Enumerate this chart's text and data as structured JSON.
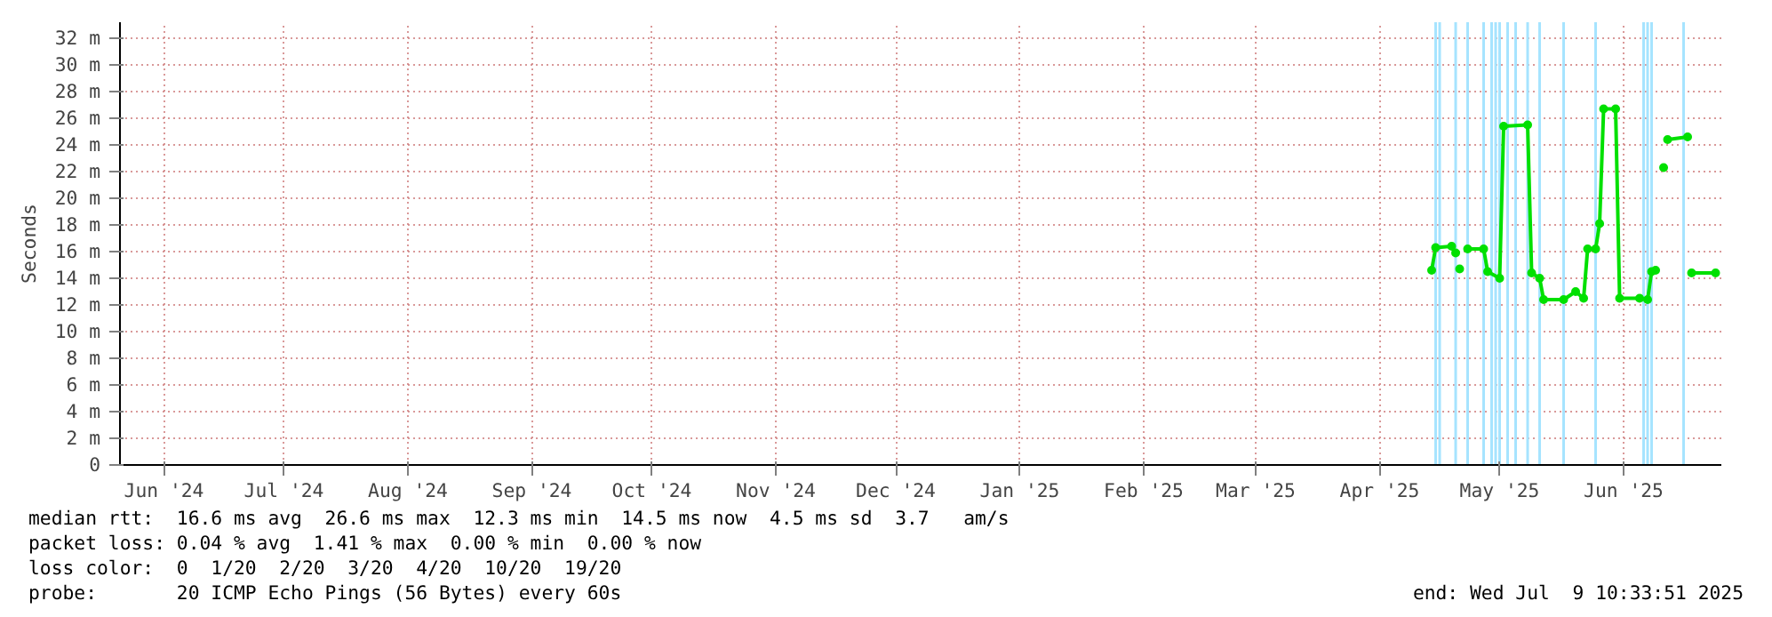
{
  "chart_data": {
    "type": "line",
    "ylabel": "Seconds",
    "x": [
      "2025-04-28",
      "2025-04-29",
      "2025-05-03",
      "2025-05-04",
      "2025-05-04T18:00",
      "2025-05-05",
      "2025-05-05T18:00",
      "2025-05-07",
      "2025-05-11",
      "2025-05-12",
      "2025-05-15",
      "2025-05-16",
      "2025-05-22",
      "2025-05-23",
      "2025-05-25",
      "2025-05-26",
      "2025-05-31",
      "2025-06-03",
      "2025-06-05",
      "2025-06-06",
      "2025-06-08",
      "2025-06-09",
      "2025-06-10",
      "2025-06-13",
      "2025-06-14",
      "2025-06-19",
      "2025-06-21",
      "2025-06-22",
      "2025-06-23",
      "2025-06-24",
      "2025-06-25",
      "2025-06-25T18:00",
      "2025-06-26",
      "2025-07-01",
      "2025-07-01T18:00",
      "2025-07-02",
      "2025-07-08"
    ],
    "series": [
      {
        "color": "#00e000",
        "values": [
          14.6,
          16.3,
          16.4,
          15.9,
          null,
          14.7,
          null,
          16.2,
          16.2,
          14.5,
          14.0,
          25.4,
          25.5,
          14.4,
          14.0,
          12.4,
          12.4,
          13.0,
          12.5,
          16.2,
          16.2,
          18.1,
          26.7,
          26.7,
          12.5,
          12.5,
          12.4,
          14.5,
          14.6,
          null,
          22.3,
          null,
          24.4,
          24.6,
          null,
          14.4,
          14.4
        ]
      }
    ],
    "xlim": [
      "2024-06-04",
      "2025-07-09T10:33"
    ],
    "xticks": [
      {
        "value": "2024-06-15",
        "label": "Jun '24"
      },
      {
        "value": "2024-07-15",
        "label": "Jul '24"
      },
      {
        "value": "2024-08-15",
        "label": "Aug '24"
      },
      {
        "value": "2024-09-15",
        "label": "Sep '24"
      },
      {
        "value": "2024-10-15",
        "label": "Oct '24"
      },
      {
        "value": "2024-11-15",
        "label": "Nov '24"
      },
      {
        "value": "2024-12-15",
        "label": "Dec '24"
      },
      {
        "value": "2025-01-15",
        "label": "Jan '25"
      },
      {
        "value": "2025-02-15",
        "label": "Feb '25"
      },
      {
        "value": "2025-03-15",
        "label": "Mar '25"
      },
      {
        "value": "2025-04-15",
        "label": "Apr '25"
      },
      {
        "value": "2025-05-15",
        "label": "May '25"
      },
      {
        "value": "2025-06-15",
        "label": "Jun '25"
      }
    ],
    "ylim": [
      0,
      33.2
    ],
    "yticks": [
      0,
      {
        "value": 2,
        "label": "2 m"
      },
      {
        "value": 4,
        "label": "4 m"
      },
      {
        "value": 6,
        "label": "6 m"
      },
      {
        "value": 8,
        "label": "8 m"
      },
      {
        "value": 10,
        "label": "10 m"
      },
      {
        "value": 12,
        "label": "12 m"
      },
      {
        "value": 14,
        "label": "14 m"
      },
      {
        "value": 16,
        "label": "16 m"
      },
      {
        "value": 18,
        "label": "18 m"
      },
      {
        "value": 20,
        "label": "20 m"
      },
      {
        "value": 22,
        "label": "22 m"
      },
      {
        "value": 24,
        "label": "24 m"
      },
      {
        "value": 26,
        "label": "26 m"
      },
      {
        "value": 28,
        "label": "28 m"
      },
      {
        "value": 30,
        "label": "30 m"
      },
      {
        "value": 32,
        "label": "32 m"
      }
    ],
    "grid": true,
    "marker": "circle",
    "ref_lines": [
      {
        "axis": "x",
        "value": "2025-04-29",
        "color": "#a6e4ff"
      },
      {
        "axis": "x",
        "value": "2025-04-30",
        "color": "#a6e4ff"
      },
      {
        "axis": "x",
        "value": "2025-05-04",
        "color": "#a6e4ff"
      },
      {
        "axis": "x",
        "value": "2025-05-07",
        "color": "#a6e4ff"
      },
      {
        "axis": "x",
        "value": "2025-05-11",
        "color": "#a6e4ff"
      },
      {
        "axis": "x",
        "value": "2025-05-13",
        "color": "#a6e4ff"
      },
      {
        "axis": "x",
        "value": "2025-05-14",
        "color": "#a6e4ff"
      },
      {
        "axis": "x",
        "value": "2025-05-15",
        "color": "#a6e4ff"
      },
      {
        "axis": "x",
        "value": "2025-05-17",
        "color": "#a6e4ff"
      },
      {
        "axis": "x",
        "value": "2025-05-19",
        "color": "#a6e4ff"
      },
      {
        "axis": "x",
        "value": "2025-05-22",
        "color": "#a6e4ff"
      },
      {
        "axis": "x",
        "value": "2025-05-25",
        "color": "#a6e4ff"
      },
      {
        "axis": "x",
        "value": "2025-05-31",
        "color": "#a6e4ff"
      },
      {
        "axis": "x",
        "value": "2025-06-08",
        "color": "#a6e4ff"
      },
      {
        "axis": "x",
        "value": "2025-06-20",
        "color": "#a6e4ff"
      },
      {
        "axis": "x",
        "value": "2025-06-21",
        "color": "#a6e4ff"
      },
      {
        "axis": "x",
        "value": "2025-06-22",
        "color": "#a6e4ff"
      },
      {
        "axis": "x",
        "value": "2025-06-30",
        "color": "#a6e4ff"
      }
    ],
    "annotations": [
      "median rtt:  16.6 ms avg  26.6 ms max  12.3 ms min  14.5 ms now  4.5 ms sd  3.7   am/s",
      "packet loss: 0.04 % avg  1.41 % max  0.00 % min  0.00 % now",
      "loss color:  0  1/20  2/20  3/20  4/20  10/20  19/20",
      "probe:       20 ICMP Echo Pings (56 Bytes) every 60s",
      "end: Wed Jul  9 10:33:51 2025"
    ]
  }
}
